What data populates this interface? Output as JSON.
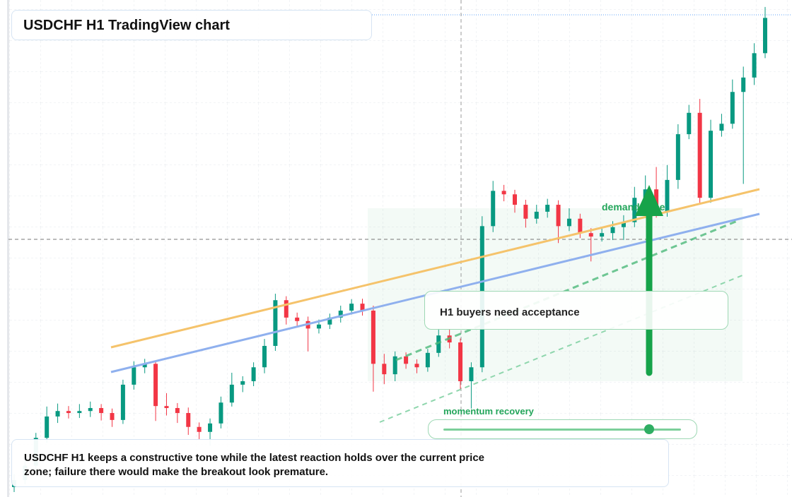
{
  "chart_data": {
    "type": "candlestick",
    "title": "USDCHF H1 TradingView chart",
    "ylim": [
      0,
      100
    ],
    "up_color": "#089981",
    "down_color": "#f23645",
    "series": {
      "open": [
        2.0,
        3.4,
        6.3,
        11.9,
        16.2,
        17.3,
        16.9,
        17.3,
        17.9,
        16.9,
        15.5,
        22.6,
        26.1,
        26.8,
        18.3,
        17.9,
        16.9,
        14.1,
        13.1,
        14.8,
        19.0,
        22.6,
        23.3,
        26.1,
        30.4,
        39.6,
        36.1,
        35.4,
        33.9,
        34.7,
        36.1,
        37.5,
        38.9,
        37.5,
        26.8,
        24.7,
        28.3,
        26.8,
        26.1,
        29.0,
        32.5,
        31.1,
        23.3,
        26.1,
        54.5,
        61.6,
        60.9,
        58.8,
        56.0,
        57.4,
        58.8,
        54.5,
        56.0,
        53.1,
        52.4,
        53.1,
        54.3,
        55.3,
        60.2,
        61.9,
        57.4,
        63.8,
        73.0,
        77.3,
        60.2,
        73.7,
        75.1,
        81.5,
        84.4,
        89.3
      ],
      "high": [
        4.6,
        7.8,
        12.9,
        18.2,
        18.8,
        18.3,
        18.7,
        19.2,
        18.7,
        17.8,
        23.6,
        27.3,
        27.8,
        27.4,
        20.9,
        18.9,
        18.0,
        15.0,
        15.8,
        20.2,
        25.0,
        24.3,
        27.1,
        31.8,
        40.9,
        40.4,
        37.1,
        36.3,
        35.7,
        36.9,
        38.5,
        39.8,
        39.9,
        38.5,
        28.8,
        29.3,
        29.1,
        27.7,
        29.8,
        33.9,
        33.8,
        31.9,
        27.1,
        56.5,
        63.6,
        62.8,
        61.8,
        59.8,
        58.8,
        60.0,
        59.7,
        58.1,
        57.0,
        54.1,
        54.0,
        55.5,
        56.7,
        62.4,
        64.7,
        66.4,
        66.8,
        75.0,
        78.9,
        80.1,
        75.9,
        77.1,
        84.0,
        86.6,
        91.3,
        98.6
      ],
      "low": [
        1.0,
        2.6,
        5.1,
        10.9,
        14.9,
        15.8,
        15.9,
        16.1,
        15.4,
        14.1,
        14.7,
        21.6,
        24.9,
        15.3,
        16.4,
        14.9,
        12.5,
        11.6,
        10.3,
        13.8,
        18.2,
        21.1,
        22.3,
        24.9,
        29.4,
        34.7,
        34.4,
        29.3,
        32.9,
        33.8,
        35.1,
        36.7,
        36.5,
        21.2,
        22.7,
        23.3,
        25.8,
        24.9,
        25.2,
        28.2,
        29.9,
        21.7,
        17.8,
        25.1,
        53.3,
        59.5,
        57.2,
        54.2,
        55.0,
        56.2,
        51.1,
        53.5,
        52.1,
        47.4,
        51.4,
        51.7,
        51.7,
        54.3,
        58.7,
        56.2,
        56.4,
        62.0,
        72.0,
        59.0,
        59.2,
        72.5,
        74.1,
        63.0,
        82.9,
        88.3
      ],
      "close": [
        3.4,
        6.3,
        11.9,
        16.2,
        17.3,
        16.9,
        17.3,
        17.9,
        16.9,
        15.5,
        22.6,
        26.1,
        26.8,
        18.3,
        17.9,
        16.9,
        14.1,
        13.1,
        14.8,
        19.0,
        22.6,
        23.3,
        26.1,
        30.4,
        39.6,
        36.1,
        35.4,
        33.9,
        34.7,
        36.1,
        37.5,
        38.9,
        37.5,
        26.8,
        24.7,
        28.3,
        26.8,
        26.1,
        29.0,
        32.5,
        31.1,
        23.3,
        26.1,
        54.5,
        61.6,
        60.9,
        58.8,
        56.0,
        57.4,
        58.8,
        54.5,
        56.0,
        53.1,
        52.4,
        53.1,
        54.3,
        55.3,
        60.2,
        61.9,
        57.4,
        63.8,
        73.0,
        77.3,
        60.2,
        73.7,
        75.1,
        81.5,
        84.4,
        89.3,
        96.4
      ]
    },
    "annotations": {
      "zone": "demand zone",
      "callout": "H1 buyers need acceptance",
      "slider": "momentum recovery"
    },
    "caption": "USDCHF H1 keeps a constructive tone while the latest reaction holds over the current price zone; failure there would make the breakout look premature."
  }
}
